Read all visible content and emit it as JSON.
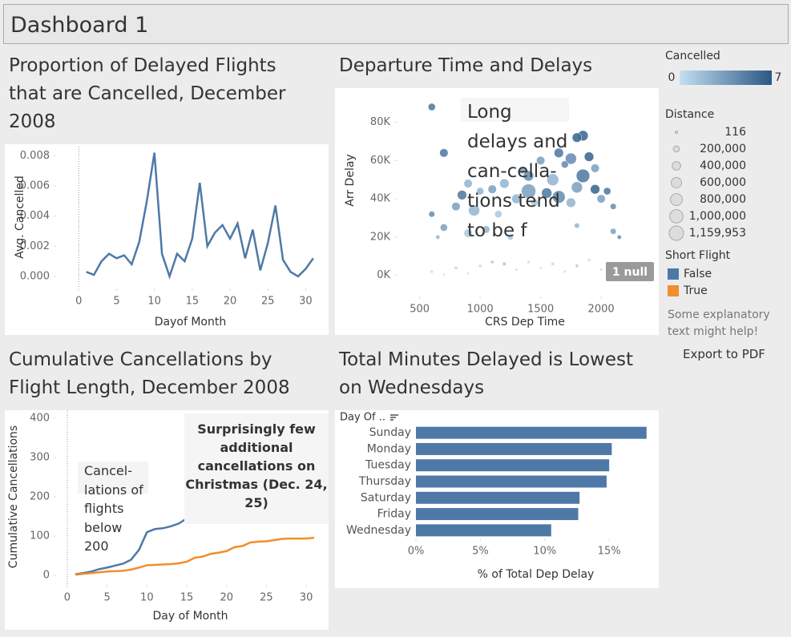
{
  "dashboard_title": "Dashboard 1",
  "chart_data": [
    {
      "type": "line",
      "title": "Proportion of Delayed Flights that are Cancelled, December 2008",
      "x_label": "Dayof Month",
      "y_label": "Avg. Cancelled",
      "x": [
        1,
        2,
        3,
        4,
        5,
        6,
        7,
        8,
        9,
        10,
        11,
        12,
        13,
        14,
        15,
        16,
        17,
        18,
        19,
        20,
        21,
        22,
        23,
        24,
        25,
        26,
        27,
        28,
        29,
        30,
        31
      ],
      "series": [
        {
          "color": "#4e79a7",
          "values": [
            0.0003,
            0.0001,
            0.001,
            0.0015,
            0.0012,
            0.0014,
            0.0008,
            0.0023,
            0.005,
            0.0082,
            0.0015,
            0.0,
            0.0015,
            0.001,
            0.0025,
            0.0062,
            0.002,
            0.0029,
            0.0034,
            0.0025,
            0.0035,
            0.0012,
            0.0031,
            0.0004,
            0.0022,
            0.0047,
            0.0011,
            0.0003,
            0.0,
            0.0005,
            0.0012
          ]
        }
      ],
      "xlim": [
        -3,
        32.5
      ],
      "xticks": [
        0,
        5,
        10,
        15,
        20,
        25,
        30
      ],
      "ylim": [
        -0.0008,
        0.0086
      ],
      "yticks": [
        {
          "value": 0,
          "label": "0.000"
        },
        {
          "value": 0.002,
          "label": "0.002"
        },
        {
          "value": 0.004,
          "label": "0.004"
        },
        {
          "value": 0.006,
          "label": "0.006"
        },
        {
          "value": 0.008,
          "label": "0.008"
        }
      ],
      "grid": false
    },
    {
      "type": "scatter",
      "title": "Departure Time and Delays",
      "x_label": "CRS Dep Time",
      "y_label": "Arr Delay",
      "x": [
        600,
        700,
        1850,
        1800,
        1650,
        1900,
        1750,
        1500,
        1700,
        1350,
        1950,
        1400,
        1600,
        1200,
        1100,
        1000,
        850,
        900,
        1550,
        1800,
        1950,
        2050,
        1300,
        1450,
        1650,
        1750,
        2000,
        2100,
        800,
        950,
        1150,
        600,
        700,
        900,
        1050,
        1250,
        2100,
        2150,
        1400,
        1850,
        650,
        1800,
        600,
        800,
        1000,
        1200,
        1400,
        1600,
        1800,
        2000,
        900,
        1300,
        1700,
        1100,
        1500,
        1900,
        700,
        2050
      ],
      "values": [
        88000,
        64000,
        73000,
        72000,
        64000,
        62000,
        61000,
        60000,
        58000,
        55000,
        56000,
        52000,
        50000,
        48000,
        45000,
        44000,
        42000,
        48000,
        43000,
        46000,
        45000,
        44000,
        40000,
        38000,
        41000,
        38000,
        40000,
        36000,
        36000,
        34000,
        32000,
        32000,
        25000,
        22000,
        24000,
        20000,
        23000,
        20000,
        44000,
        52000,
        20000,
        26000,
        2000,
        4000,
        5000,
        6000,
        7000,
        6000,
        5000,
        3000,
        1000,
        3000,
        2000,
        7000,
        4000,
        8000,
        500,
        6000
      ],
      "sizes": [
        300000,
        400000,
        600000,
        500000,
        500000,
        500000,
        700000,
        400000,
        300000,
        300000,
        400000,
        600000,
        800000,
        500000,
        400000,
        300000,
        500000,
        400000,
        600000,
        700000,
        500000,
        300000,
        500000,
        300000,
        900000,
        500000,
        400000,
        200000,
        400000,
        700000,
        300000,
        200000,
        300000,
        400000,
        300000,
        200000,
        200000,
        100000,
        1159953,
        1000000,
        100000,
        150000,
        50000,
        80000,
        60000,
        80000,
        50000,
        70000,
        60000,
        40000,
        30000,
        40000,
        40000,
        60000,
        30000,
        50000,
        30000,
        50000
      ],
      "cancelled": [
        5,
        5,
        6,
        6,
        5,
        6,
        4,
        3,
        4,
        3,
        3,
        4,
        2,
        2,
        3,
        2,
        5,
        2,
        5,
        3,
        6,
        5,
        2,
        1,
        4,
        2,
        3,
        4,
        3,
        2,
        1,
        4,
        3,
        1,
        2,
        1,
        3,
        4,
        3,
        5,
        2,
        2,
        0,
        0,
        0,
        1,
        0,
        0,
        1,
        0,
        0,
        0,
        0,
        1,
        0,
        0,
        0,
        0
      ],
      "xlim": [
        310,
        2430
      ],
      "xticks": [
        500,
        1000,
        1500,
        2000
      ],
      "ylim": [
        -11000,
        97000
      ],
      "yticks": [
        {
          "value": 0,
          "label": "0K"
        },
        {
          "value": 20000,
          "label": "20K"
        },
        {
          "value": 40000,
          "label": "40K"
        },
        {
          "value": 60000,
          "label": "60K"
        },
        {
          "value": 80000,
          "label": "80K"
        }
      ],
      "grid": false,
      "annotation": "Long delays and can-cella-tions tend to be f",
      "null_indicator": "1 null",
      "color_legend_title": "Cancelled",
      "color_lim": [
        0,
        7
      ],
      "color_scale": [
        "#c4dff2",
        "#2a5783"
      ],
      "size_legend_title": "Distance",
      "size_legend": [
        {
          "value": 116,
          "label": "116"
        },
        {
          "value": 200000,
          "label": "200,000"
        },
        {
          "value": 400000,
          "label": "400,000"
        },
        {
          "value": 600000,
          "label": "600,000"
        },
        {
          "value": 800000,
          "label": "800,000"
        },
        {
          "value": 1000000,
          "label": "1,000,000"
        },
        {
          "value": 1159953,
          "label": "1,159,953"
        }
      ]
    },
    {
      "type": "line",
      "title": "Cumulative Cancellations by Flight Length, December 2008",
      "x_label": "Day of Month",
      "y_label": "Cumulative Cancellations",
      "legend_title": "Short Flight",
      "x": [
        1,
        2,
        3,
        4,
        5,
        6,
        7,
        8,
        9,
        10,
        11,
        12,
        13,
        14,
        15,
        16,
        17,
        18,
        19,
        20,
        21,
        22,
        23,
        24,
        25,
        26,
        27,
        28,
        29,
        30,
        31
      ],
      "series": [
        {
          "name": "False",
          "color": "#4e79a7",
          "values": [
            3,
            6,
            10,
            16,
            20,
            25,
            30,
            40,
            65,
            110,
            118,
            120,
            125,
            132,
            145,
            190,
            220,
            250,
            270,
            290,
            305,
            320,
            335,
            345,
            352,
            360,
            368,
            375,
            380,
            385,
            390
          ]
        },
        {
          "name": "True",
          "color": "#f28e2b",
          "values": [
            2,
            4,
            6,
            8,
            10,
            11,
            12,
            15,
            20,
            26,
            27,
            28,
            29,
            31,
            35,
            45,
            48,
            55,
            58,
            62,
            72,
            75,
            84,
            86,
            87,
            90,
            93,
            94,
            94,
            94,
            96
          ]
        }
      ],
      "xlim": [
        -1.4,
        32.3
      ],
      "xticks": [
        0,
        5,
        10,
        15,
        20,
        25,
        30
      ],
      "ylim": [
        -24,
        420
      ],
      "yticks": [
        0,
        100,
        200,
        300,
        400
      ],
      "grid": false,
      "annotations": [
        "Cancel-lations of flights below 200",
        "Surprisingly few additional cancellations on Christmas (Dec. 24, 25)"
      ]
    },
    {
      "type": "hbar",
      "title": "Total Minutes Delayed is Lowest on Wednesdays",
      "header": "Day Of ..",
      "x_label": "% of Total Dep Delay",
      "color": "#4e79a7",
      "categories": [
        "Sunday",
        "Monday",
        "Tuesday",
        "Thursday",
        "Saturday",
        "Friday",
        "Wednesday"
      ],
      "values": [
        17.9,
        15.2,
        15.0,
        14.8,
        12.7,
        12.6,
        10.5
      ],
      "xlim": [
        0,
        18.6
      ],
      "xticks": [
        {
          "value": 0,
          "label": "0%"
        },
        {
          "value": 5,
          "label": "5%"
        },
        {
          "value": 10,
          "label": "10%"
        },
        {
          "value": 15,
          "label": "15%"
        }
      ],
      "grid": false
    }
  ],
  "sidebar": {
    "note": "Some explanatory text might help!",
    "export_button": "Export to PDF"
  }
}
